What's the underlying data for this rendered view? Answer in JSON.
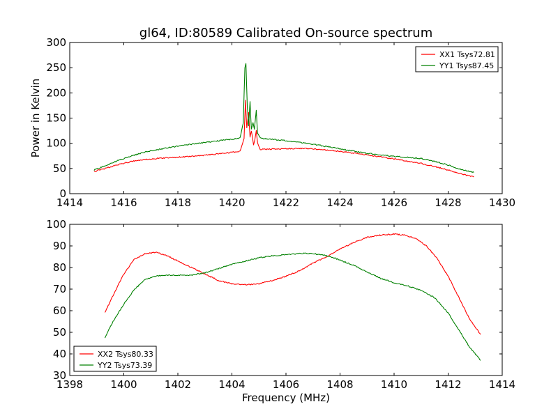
{
  "chart_data": [
    {
      "type": "line",
      "title": "gl64, ID:80589 Calibrated On-source spectrum",
      "xlabel": "",
      "ylabel": "Power in Kelvin",
      "xlim": [
        1414,
        1430
      ],
      "ylim": [
        0,
        300
      ],
      "xticks": [
        "1414",
        "1416",
        "1418",
        "1420",
        "1422",
        "1424",
        "1426",
        "1428",
        "1430"
      ],
      "yticks": [
        "0",
        "50",
        "100",
        "150",
        "200",
        "250",
        "300"
      ],
      "legend_position": "top-right",
      "grid": false,
      "series": [
        {
          "name": "XX1 Tsys72.81",
          "color": "#ff0000",
          "x": [
            1414.9,
            1415.3,
            1415.8,
            1416.3,
            1416.8,
            1417.5,
            1418.5,
            1419.5,
            1420.0,
            1420.3,
            1420.45,
            1420.5,
            1420.55,
            1420.62,
            1420.67,
            1420.72,
            1420.8,
            1420.85,
            1420.9,
            1420.95,
            1421.05,
            1421.3,
            1421.8,
            1422.5,
            1423.0,
            1424.0,
            1425.0,
            1426.0,
            1427.0,
            1427.8,
            1428.5,
            1428.95
          ],
          "y": [
            44,
            50,
            58,
            64,
            68,
            71,
            74,
            79,
            82,
            84,
            110,
            185,
            130,
            160,
            112,
            125,
            97,
            108,
            125,
            100,
            88,
            88,
            89,
            90,
            89,
            84,
            77,
            69,
            60,
            50,
            39,
            33
          ]
        },
        {
          "name": "YY1 Tsys87.45",
          "color": "#008000",
          "x": [
            1414.9,
            1415.3,
            1415.8,
            1416.3,
            1416.8,
            1417.5,
            1418.5,
            1419.5,
            1420.0,
            1420.3,
            1420.42,
            1420.48,
            1420.52,
            1420.57,
            1420.62,
            1420.67,
            1420.72,
            1420.78,
            1420.83,
            1420.9,
            1420.95,
            1421.05,
            1421.5,
            1422.0,
            1423.0,
            1424.0,
            1425.0,
            1426.0,
            1427.0,
            1427.8,
            1428.5,
            1428.95
          ],
          "y": [
            47,
            55,
            66,
            75,
            83,
            90,
            98,
            105,
            108,
            110,
            140,
            250,
            258,
            170,
            135,
            182,
            128,
            140,
            128,
            165,
            120,
            110,
            108,
            105,
            98,
            89,
            80,
            74,
            70,
            60,
            48,
            42
          ]
        }
      ]
    },
    {
      "type": "line",
      "title": "",
      "xlabel": "Frequency (MHz)",
      "ylabel": "",
      "xlim": [
        1398,
        1414
      ],
      "ylim": [
        30,
        100
      ],
      "xticks": [
        "1398",
        "1400",
        "1402",
        "1404",
        "1406",
        "1408",
        "1410",
        "1412",
        "1414"
      ],
      "yticks": [
        "30",
        "40",
        "50",
        "60",
        "70",
        "80",
        "90",
        "100"
      ],
      "legend_position": "bottom-left",
      "grid": false,
      "series": [
        {
          "name": "XX2 Tsys80.33",
          "color": "#ff0000",
          "x": [
            1399.3,
            1399.6,
            1400.0,
            1400.4,
            1400.8,
            1401.2,
            1401.6,
            1402.0,
            1402.5,
            1403.0,
            1403.5,
            1404.0,
            1404.5,
            1405.0,
            1405.5,
            1406.0,
            1406.5,
            1407.0,
            1407.5,
            1408.0,
            1408.5,
            1409.0,
            1409.5,
            1410.0,
            1410.4,
            1410.8,
            1411.2,
            1411.6,
            1412.0,
            1412.4,
            1412.8,
            1413.2
          ],
          "y": [
            59,
            67,
            77,
            84,
            86.5,
            87,
            85.5,
            83,
            80,
            77,
            74,
            72.5,
            72,
            72.5,
            74,
            76,
            78.5,
            82,
            85,
            88.5,
            91.5,
            94,
            95,
            95.5,
            95,
            93.5,
            90,
            84,
            76,
            66,
            56,
            49
          ]
        },
        {
          "name": "YY2 Tsys73.39",
          "color": "#008000",
          "x": [
            1399.3,
            1399.6,
            1400.0,
            1400.4,
            1400.8,
            1401.2,
            1401.6,
            1402.0,
            1402.5,
            1403.0,
            1403.5,
            1404.0,
            1404.5,
            1405.0,
            1405.5,
            1406.0,
            1406.5,
            1407.0,
            1407.5,
            1408.0,
            1408.5,
            1409.0,
            1409.5,
            1410.0,
            1410.5,
            1411.0,
            1411.5,
            1412.0,
            1412.4,
            1412.8,
            1413.2
          ],
          "y": [
            47.5,
            55,
            63,
            70,
            74.5,
            76,
            76.5,
            76.5,
            76.5,
            77.5,
            79.5,
            81.5,
            83,
            84.5,
            85.5,
            86,
            86.5,
            86.5,
            85.5,
            83.5,
            81,
            78,
            75,
            73,
            71.5,
            69.5,
            66,
            59,
            51,
            43,
            37
          ]
        }
      ]
    }
  ]
}
